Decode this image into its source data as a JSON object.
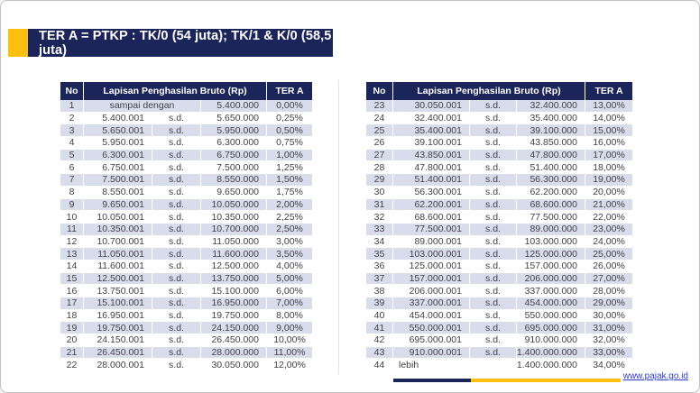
{
  "banner": {
    "title": "TER A = PTKP : TK/0 (54 juta); TK/1 & K/0 (58,5 juta)"
  },
  "colors": {
    "navy": "#1B2559",
    "yellow": "#FDC010",
    "row_shade": "#D9DDEB",
    "link_blue": "#2E3EC7"
  },
  "tables": {
    "left": {
      "headers": {
        "no": "No",
        "range": "Lapisan Penghasilan Bruto (Rp)",
        "rate": "TER A"
      },
      "rows": [
        {
          "no": "1",
          "from": "sampai dengan",
          "sd": "",
          "to": "5.400.000",
          "rate": "0,00%",
          "merge_from_sd": true
        },
        {
          "no": "2",
          "from": "5.400.001",
          "sd": "s.d.",
          "to": "5.650.000",
          "rate": "0,25%"
        },
        {
          "no": "3",
          "from": "5.650.001",
          "sd": "s.d.",
          "to": "5.950.000",
          "rate": "0,50%"
        },
        {
          "no": "4",
          "from": "5.950.001",
          "sd": "s.d.",
          "to": "6.300.000",
          "rate": "0,75%"
        },
        {
          "no": "5",
          "from": "6.300.001",
          "sd": "s.d.",
          "to": "6.750.000",
          "rate": "1,00%"
        },
        {
          "no": "6",
          "from": "6.750.001",
          "sd": "s.d.",
          "to": "7.500.000",
          "rate": "1,25%"
        },
        {
          "no": "7",
          "from": "7.500.001",
          "sd": "s.d.",
          "to": "8.550.000",
          "rate": "1,50%"
        },
        {
          "no": "8",
          "from": "8.550.001",
          "sd": "s.d.",
          "to": "9.650.000",
          "rate": "1,75%"
        },
        {
          "no": "9",
          "from": "9.650.001",
          "sd": "s.d.",
          "to": "10.050.000",
          "rate": "2,00%"
        },
        {
          "no": "10",
          "from": "10.050.001",
          "sd": "s.d.",
          "to": "10.350.000",
          "rate": "2,25%"
        },
        {
          "no": "11",
          "from": "10.350.001",
          "sd": "s.d.",
          "to": "10.700.000",
          "rate": "2,50%"
        },
        {
          "no": "12",
          "from": "10.700.001",
          "sd": "s.d.",
          "to": "11.050.000",
          "rate": "3,00%"
        },
        {
          "no": "13",
          "from": "11.050.001",
          "sd": "s.d.",
          "to": "11.600.000",
          "rate": "3,50%"
        },
        {
          "no": "14",
          "from": "11.600.001",
          "sd": "s.d.",
          "to": "12.500.000",
          "rate": "4,00%"
        },
        {
          "no": "15",
          "from": "12.500.001",
          "sd": "s.d.",
          "to": "13.750.000",
          "rate": "5,00%"
        },
        {
          "no": "16",
          "from": "13.750.001",
          "sd": "s.d.",
          "to": "15.100.000",
          "rate": "6,00%"
        },
        {
          "no": "17",
          "from": "15.100.001",
          "sd": "s.d.",
          "to": "16.950.000",
          "rate": "7,00%"
        },
        {
          "no": "18",
          "from": "16.950.001",
          "sd": "s.d.",
          "to": "19.750.000",
          "rate": "8,00%"
        },
        {
          "no": "19",
          "from": "19.750.001",
          "sd": "s.d.",
          "to": "24.150.000",
          "rate": "9,00%"
        },
        {
          "no": "20",
          "from": "24.150.001",
          "sd": "s.d.",
          "to": "26.450.000",
          "rate": "10,00%"
        },
        {
          "no": "21",
          "from": "26.450.001",
          "sd": "s.d.",
          "to": "28.000.000",
          "rate": "11,00%"
        },
        {
          "no": "22",
          "from": "28.000.001",
          "sd": "s.d.",
          "to": "30.050.000",
          "rate": "12,00%"
        }
      ]
    },
    "right": {
      "headers": {
        "no": "No",
        "range": "Lapisan Penghasilan Bruto (Rp)",
        "rate": "TER A"
      },
      "rows": [
        {
          "no": "23",
          "from": "30.050.001",
          "sd": "s.d.",
          "to": "32.400.000",
          "rate": "13,00%"
        },
        {
          "no": "24",
          "from": "32.400.001",
          "sd": "s.d.",
          "to": "35.400.000",
          "rate": "14,00%"
        },
        {
          "no": "25",
          "from": "35.400.001",
          "sd": "s.d.",
          "to": "39.100.000",
          "rate": "15,00%"
        },
        {
          "no": "26",
          "from": "39.100.001",
          "sd": "s.d.",
          "to": "43.850.000",
          "rate": "16,00%"
        },
        {
          "no": "27",
          "from": "43.850.001",
          "sd": "s.d.",
          "to": "47.800.000",
          "rate": "17,00%"
        },
        {
          "no": "28",
          "from": "47.800.001",
          "sd": "s.d.",
          "to": "51.400.000",
          "rate": "18,00%"
        },
        {
          "no": "29",
          "from": "51.400.001",
          "sd": "s.d.",
          "to": "56.300.000",
          "rate": "19,00%"
        },
        {
          "no": "30",
          "from": "56.300.001",
          "sd": "s.d.",
          "to": "62.200.000",
          "rate": "20,00%"
        },
        {
          "no": "31",
          "from": "62.200.001",
          "sd": "s.d.",
          "to": "68.600.000",
          "rate": "21,00%"
        },
        {
          "no": "32",
          "from": "68.600.001",
          "sd": "s.d.",
          "to": "77.500.000",
          "rate": "22,00%"
        },
        {
          "no": "33",
          "from": "77.500.001",
          "sd": "s.d.",
          "to": "89.000.000",
          "rate": "23,00%"
        },
        {
          "no": "34",
          "from": "89.000.001",
          "sd": "s.d.",
          "to": "103.000.000",
          "rate": "24,00%"
        },
        {
          "no": "35",
          "from": "103.000.001",
          "sd": "s.d.",
          "to": "125.000.000",
          "rate": "25,00%"
        },
        {
          "no": "36",
          "from": "125.000.001",
          "sd": "s.d.",
          "to": "157.000.000",
          "rate": "26,00%"
        },
        {
          "no": "37",
          "from": "157.000.001",
          "sd": "s.d.",
          "to": "206.000.000",
          "rate": "27,00%"
        },
        {
          "no": "38",
          "from": "206.000.001",
          "sd": "s.d.",
          "to": "337.000.000",
          "rate": "28,00%"
        },
        {
          "no": "39",
          "from": "337.000.001",
          "sd": "s.d.",
          "to": "454.000.000",
          "rate": "29,00%"
        },
        {
          "no": "40",
          "from": "454.000.001",
          "sd": "s.d.",
          "to": "550.000.000",
          "rate": "30,00%"
        },
        {
          "no": "41",
          "from": "550.000.001",
          "sd": "s.d.",
          "to": "695.000.000",
          "rate": "31,00%"
        },
        {
          "no": "42",
          "from": "695.000.001",
          "sd": "s.d.",
          "to": "910.000.000",
          "rate": "32,00%"
        },
        {
          "no": "43",
          "from": "910.000.001",
          "sd": "s.d.",
          "to": "1.400.000.000",
          "rate": "33,00%"
        },
        {
          "no": "44",
          "from": "lebih",
          "sd": "",
          "to": "1.400.000.000",
          "rate": "34,00%",
          "from_align": "left"
        }
      ]
    }
  },
  "footer": {
    "link": "www.pajak.go.id"
  }
}
